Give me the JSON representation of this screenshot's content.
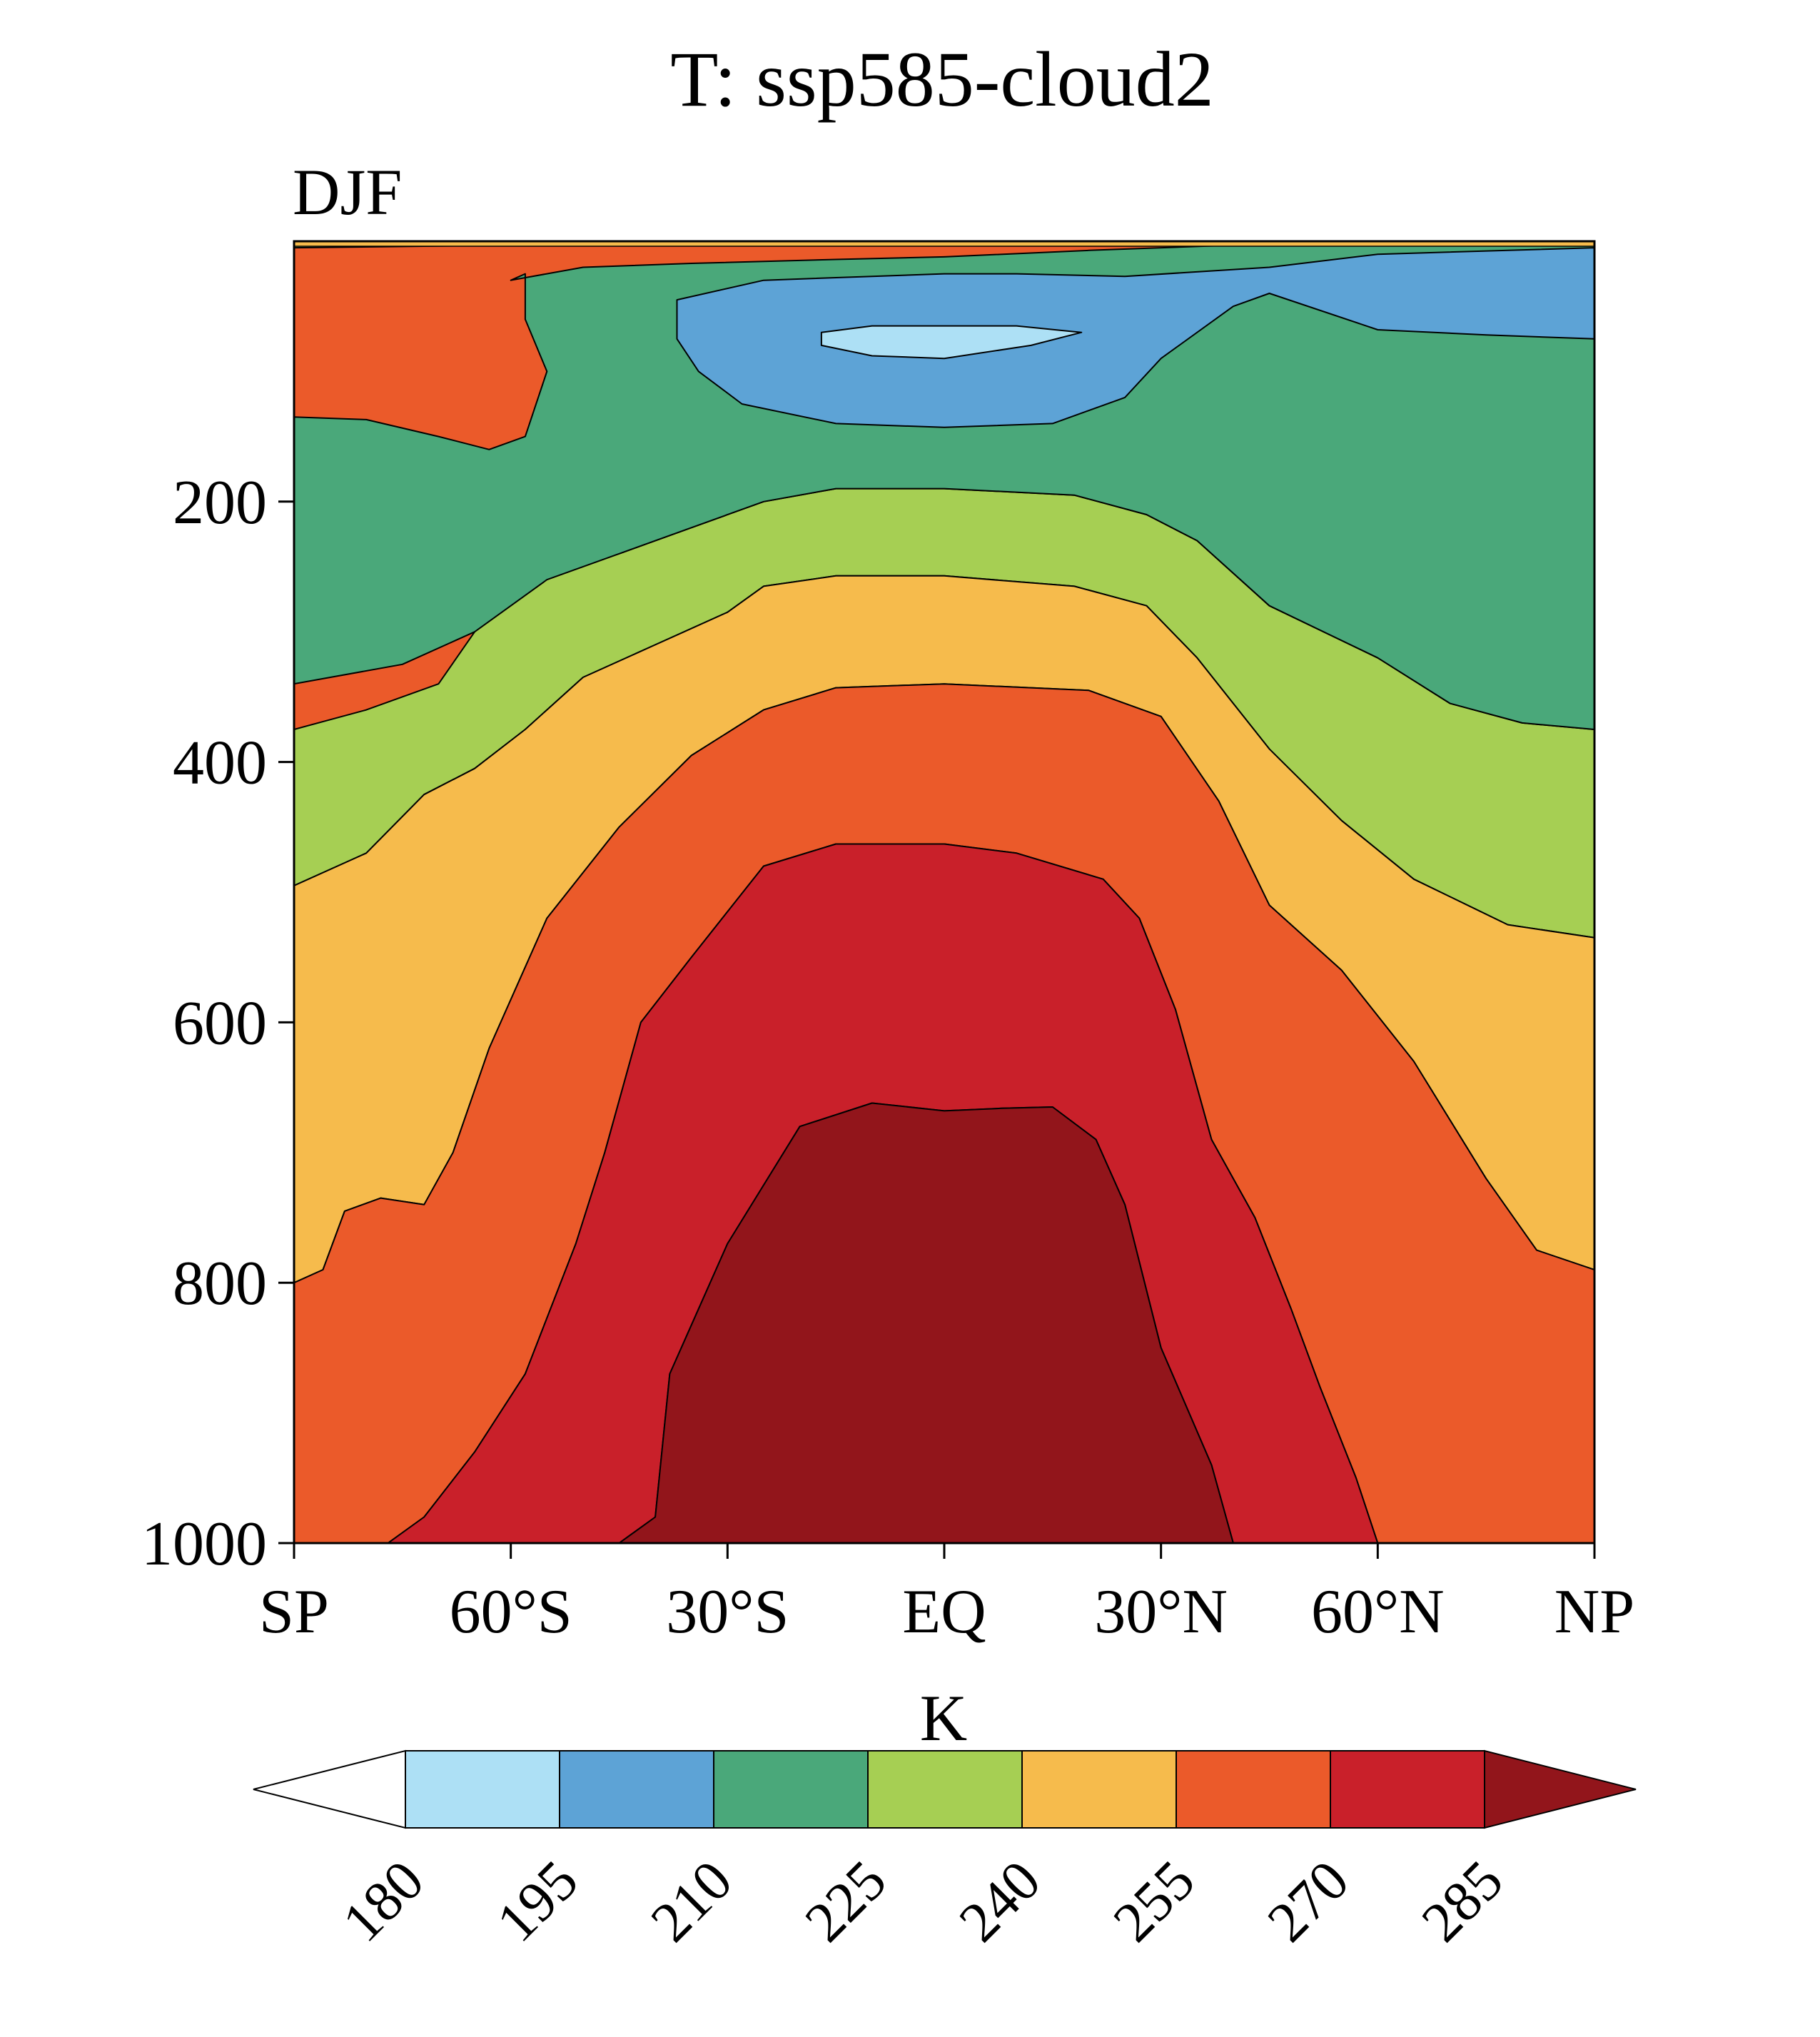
{
  "chart_data": {
    "type": "contour",
    "title": "T: ssp585-cloud2",
    "subtitle": "DJF",
    "xlabel": "",
    "ylabel": "",
    "x_tick_labels": [
      "SP",
      "60°S",
      "30°S",
      "EQ",
      "30°N",
      "60°N",
      "NP"
    ],
    "x_ticks_deg": [
      -90,
      -60,
      -30,
      0,
      30,
      60,
      90
    ],
    "y_ticks": [
      1000,
      800,
      600,
      400,
      200
    ],
    "y_tick_labels": [
      "1000",
      "800",
      "600",
      "400",
      "200"
    ],
    "ylim": [
      1000,
      0
    ],
    "xlim": [
      -90,
      90
    ],
    "units": "K",
    "levels": [
      180,
      195,
      210,
      225,
      240,
      255,
      270,
      285
    ],
    "colorbar_labels": [
      "180",
      "195",
      "210",
      "225",
      "240",
      "255",
      "270",
      "285"
    ],
    "colors": [
      "#ffffff",
      "#ade0f5",
      "#5da3d6",
      "#4aa87a",
      "#a6cf53",
      "#f6bb4c",
      "#eb5a2a",
      "#c9202a",
      "#92151b"
    ],
    "contours": [
      {
        "name": "lt195",
        "color": "#ade0f5",
        "points": [
          [
            -17,
            70
          ],
          [
            -10,
            65
          ],
          [
            0,
            65
          ],
          [
            10,
            65
          ],
          [
            19,
            70
          ],
          [
            12,
            80
          ],
          [
            0,
            90
          ],
          [
            -10,
            88
          ],
          [
            -17,
            80
          ]
        ]
      },
      {
        "name": "195-210",
        "color": "#5da3d6",
        "points": [
          [
            -37,
            45
          ],
          [
            -25,
            30
          ],
          [
            -10,
            27
          ],
          [
            0,
            25
          ],
          [
            10,
            25
          ],
          [
            25,
            27
          ],
          [
            45,
            20
          ],
          [
            60,
            10
          ],
          [
            90,
            5
          ],
          [
            90,
            75
          ],
          [
            75,
            72
          ],
          [
            60,
            68
          ],
          [
            45,
            40
          ],
          [
            40,
            50
          ],
          [
            30,
            90
          ],
          [
            25,
            120
          ],
          [
            15,
            140
          ],
          [
            0,
            143
          ],
          [
            -15,
            140
          ],
          [
            -28,
            125
          ],
          [
            -34,
            100
          ],
          [
            -37,
            75
          ]
        ]
      },
      {
        "name": "210-225",
        "color": "#4aa87a",
        "points": [
          [
            -60,
            30
          ],
          [
            -50,
            20
          ],
          [
            -35,
            17
          ],
          [
            -15,
            14
          ],
          [
            0,
            12
          ],
          [
            20,
            7
          ],
          [
            40,
            3
          ],
          [
            60,
            0
          ],
          [
            90,
            0
          ],
          [
            90,
            375
          ],
          [
            80,
            370
          ],
          [
            70,
            355
          ],
          [
            60,
            320
          ],
          [
            45,
            280
          ],
          [
            35,
            230
          ],
          [
            28,
            210
          ],
          [
            18,
            195
          ],
          [
            0,
            190
          ],
          [
            -15,
            190
          ],
          [
            -25,
            200
          ],
          [
            -35,
            220
          ],
          [
            -45,
            240
          ],
          [
            -55,
            260
          ],
          [
            -65,
            300
          ],
          [
            -75,
            325
          ],
          [
            -90,
            340
          ],
          [
            -90,
            135
          ],
          [
            -80,
            137
          ],
          [
            -70,
            150
          ],
          [
            -63,
            160
          ],
          [
            -58,
            150
          ],
          [
            -55,
            100
          ],
          [
            -58,
            60
          ],
          [
            -58,
            25
          ]
        ]
      },
      {
        "name": "225-240",
        "color": "#a6cf53",
        "points": [
          [
            -90,
            5
          ],
          [
            -60,
            3
          ],
          [
            -30,
            2
          ],
          [
            0,
            1
          ],
          [
            30,
            0
          ],
          [
            60,
            0
          ],
          [
            90,
            0
          ],
          [
            90,
            535
          ],
          [
            78,
            525
          ],
          [
            65,
            490
          ],
          [
            55,
            445
          ],
          [
            45,
            390
          ],
          [
            35,
            320
          ],
          [
            28,
            280
          ],
          [
            18,
            265
          ],
          [
            0,
            257
          ],
          [
            -15,
            257
          ],
          [
            -25,
            265
          ],
          [
            -30,
            285
          ],
          [
            -40,
            310
          ],
          [
            -50,
            335
          ],
          [
            -58,
            375
          ],
          [
            -65,
            405
          ],
          [
            -72,
            425
          ],
          [
            -80,
            470
          ],
          [
            -90,
            495
          ],
          [
            -90,
            375
          ],
          [
            -80,
            360
          ],
          [
            -70,
            340
          ],
          [
            -65,
            300
          ],
          [
            -60,
            265
          ],
          [
            -45,
            240
          ],
          [
            -35,
            220
          ],
          [
            -25,
            200
          ],
          [
            -15,
            190
          ],
          [
            0,
            190
          ],
          [
            18,
            195
          ],
          [
            28,
            210
          ],
          [
            35,
            230
          ],
          [
            45,
            280
          ],
          [
            60,
            320
          ],
          [
            70,
            355
          ],
          [
            80,
            370
          ],
          [
            90,
            375
          ],
          [
            90,
            0
          ],
          [
            60,
            0
          ],
          [
            30,
            0
          ],
          [
            0,
            1
          ],
          [
            -30,
            2
          ],
          [
            -60,
            3
          ],
          [
            -90,
            3
          ]
        ]
      },
      {
        "name": "240-255",
        "color": "#f6bb4c",
        "points": [
          [
            -90,
            495
          ],
          [
            -80,
            470
          ],
          [
            -72,
            425
          ],
          [
            -65,
            405
          ],
          [
            -58,
            375
          ],
          [
            -50,
            335
          ],
          [
            -40,
            310
          ],
          [
            -30,
            285
          ],
          [
            -25,
            265
          ],
          [
            -15,
            257
          ],
          [
            0,
            257
          ],
          [
            18,
            265
          ],
          [
            28,
            280
          ],
          [
            35,
            320
          ],
          [
            45,
            390
          ],
          [
            55,
            445
          ],
          [
            65,
            490
          ],
          [
            78,
            525
          ],
          [
            90,
            535
          ],
          [
            90,
            790
          ],
          [
            82,
            775
          ],
          [
            75,
            720
          ],
          [
            65,
            630
          ],
          [
            55,
            560
          ],
          [
            45,
            510
          ],
          [
            38,
            430
          ],
          [
            30,
            365
          ],
          [
            20,
            345
          ],
          [
            0,
            340
          ],
          [
            -15,
            343
          ],
          [
            -25,
            360
          ],
          [
            -35,
            395
          ],
          [
            -45,
            450
          ],
          [
            -55,
            520
          ],
          [
            -63,
            620
          ],
          [
            -68,
            700
          ],
          [
            -72,
            740
          ],
          [
            -78,
            735
          ],
          [
            -83,
            745
          ],
          [
            -86,
            790
          ],
          [
            -90,
            800
          ]
        ]
      },
      {
        "name": "255-270",
        "color": "#eb5a2a",
        "points": [
          [
            -90,
            800
          ],
          [
            -86,
            790
          ],
          [
            -83,
            745
          ],
          [
            -78,
            735
          ],
          [
            -72,
            740
          ],
          [
            -68,
            700
          ],
          [
            -63,
            620
          ],
          [
            -55,
            520
          ],
          [
            -45,
            450
          ],
          [
            -35,
            395
          ],
          [
            -25,
            360
          ],
          [
            -15,
            343
          ],
          [
            0,
            340
          ],
          [
            20,
            345
          ],
          [
            30,
            365
          ],
          [
            38,
            430
          ],
          [
            45,
            510
          ],
          [
            55,
            560
          ],
          [
            65,
            630
          ],
          [
            75,
            720
          ],
          [
            82,
            775
          ],
          [
            90,
            790
          ],
          [
            90,
            1000
          ],
          [
            60,
            1000
          ],
          [
            57,
            950
          ],
          [
            52,
            880
          ],
          [
            48,
            820
          ],
          [
            43,
            750
          ],
          [
            37,
            690
          ],
          [
            32,
            590
          ],
          [
            27,
            520
          ],
          [
            22,
            490
          ],
          [
            10,
            470
          ],
          [
            0,
            463
          ],
          [
            -15,
            463
          ],
          [
            -25,
            480
          ],
          [
            -35,
            550
          ],
          [
            -42,
            600
          ],
          [
            -47,
            700
          ],
          [
            -51,
            770
          ],
          [
            -58,
            870
          ],
          [
            -65,
            930
          ],
          [
            -72,
            980
          ],
          [
            -77,
            1000
          ],
          [
            -90,
            1000
          ]
        ]
      },
      {
        "name": "270-285",
        "color": "#c9202a",
        "points": [
          [
            -77,
            1000
          ],
          [
            -72,
            980
          ],
          [
            -65,
            930
          ],
          [
            -58,
            870
          ],
          [
            -51,
            770
          ],
          [
            -47,
            700
          ],
          [
            -42,
            600
          ],
          [
            -35,
            550
          ],
          [
            -25,
            480
          ],
          [
            -15,
            463
          ],
          [
            0,
            463
          ],
          [
            10,
            470
          ],
          [
            22,
            490
          ],
          [
            27,
            520
          ],
          [
            32,
            590
          ],
          [
            37,
            690
          ],
          [
            43,
            750
          ],
          [
            48,
            820
          ],
          [
            52,
            880
          ],
          [
            57,
            950
          ],
          [
            60,
            1000
          ],
          [
            40,
            1000
          ],
          [
            37,
            940
          ],
          [
            30,
            850
          ],
          [
            25,
            740
          ],
          [
            21,
            690
          ],
          [
            15,
            665
          ],
          [
            8,
            666
          ],
          [
            0,
            668
          ],
          [
            -10,
            662
          ],
          [
            -20,
            680
          ],
          [
            -30,
            770
          ],
          [
            -38,
            870
          ],
          [
            -40,
            980
          ],
          [
            -45,
            1000
          ]
        ]
      },
      {
        "name": "gt285",
        "color": "#92151b",
        "points": [
          [
            -45,
            1000
          ],
          [
            -40,
            980
          ],
          [
            -38,
            870
          ],
          [
            -30,
            770
          ],
          [
            -20,
            680
          ],
          [
            -10,
            662
          ],
          [
            0,
            668
          ],
          [
            8,
            666
          ],
          [
            15,
            665
          ],
          [
            21,
            690
          ],
          [
            25,
            740
          ],
          [
            30,
            850
          ],
          [
            37,
            940
          ],
          [
            40,
            1000
          ]
        ]
      }
    ]
  }
}
